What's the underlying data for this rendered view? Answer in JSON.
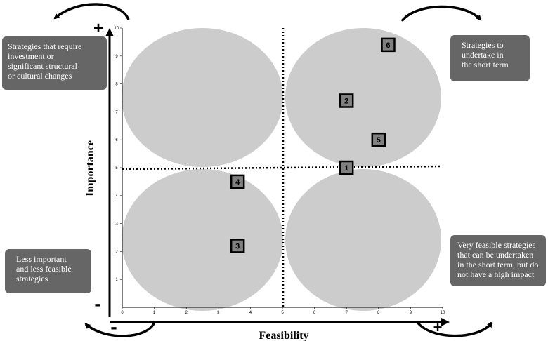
{
  "chart_data": {
    "type": "scatter",
    "title": "",
    "xlabel": "Feasibility",
    "ylabel": "Importance",
    "xlim": [
      0,
      10
    ],
    "ylim": [
      0,
      10
    ],
    "x_ticks": [
      "0",
      "1",
      "2",
      "3",
      "4",
      "5",
      "6",
      "7",
      "8",
      "9",
      "10"
    ],
    "y_ticks": [
      "1",
      "2",
      "3",
      "4",
      "5",
      "6",
      "7",
      "8",
      "9",
      "10"
    ],
    "divider_x": 5,
    "divider_y": 5,
    "grid": false,
    "quadrant_fill": "#cccccc",
    "marker_fill": "#808080",
    "points": [
      {
        "label": "1",
        "x": 7.0,
        "y": 5.0
      },
      {
        "label": "2",
        "x": 7.0,
        "y": 7.4
      },
      {
        "label": "3",
        "x": 3.6,
        "y": 2.2
      },
      {
        "label": "4",
        "x": 3.6,
        "y": 4.5
      },
      {
        "label": "5",
        "x": 8.0,
        "y": 6.0
      },
      {
        "label": "6",
        "x": 8.3,
        "y": 9.4
      }
    ],
    "axis_signs": {
      "y_high": "+",
      "y_low": "-",
      "x_low": "-",
      "x_high": "+"
    }
  },
  "notes": {
    "top_left": [
      "Strategies that require",
      "investment or",
      "significant structural",
      "or cultural changes"
    ],
    "top_right": [
      "Strategies to",
      "undertake in",
      "the short term"
    ],
    "bottom_left": [
      "Less important",
      "and less feasible",
      "strategies"
    ],
    "bottom_right": [
      "Very feasible strategies",
      "that can be undertaken",
      "in the short term, but do",
      "not have a high impact"
    ]
  },
  "colors": {
    "note_bg": "#666666",
    "note_text": "#ffffff",
    "axis": "#000000"
  }
}
